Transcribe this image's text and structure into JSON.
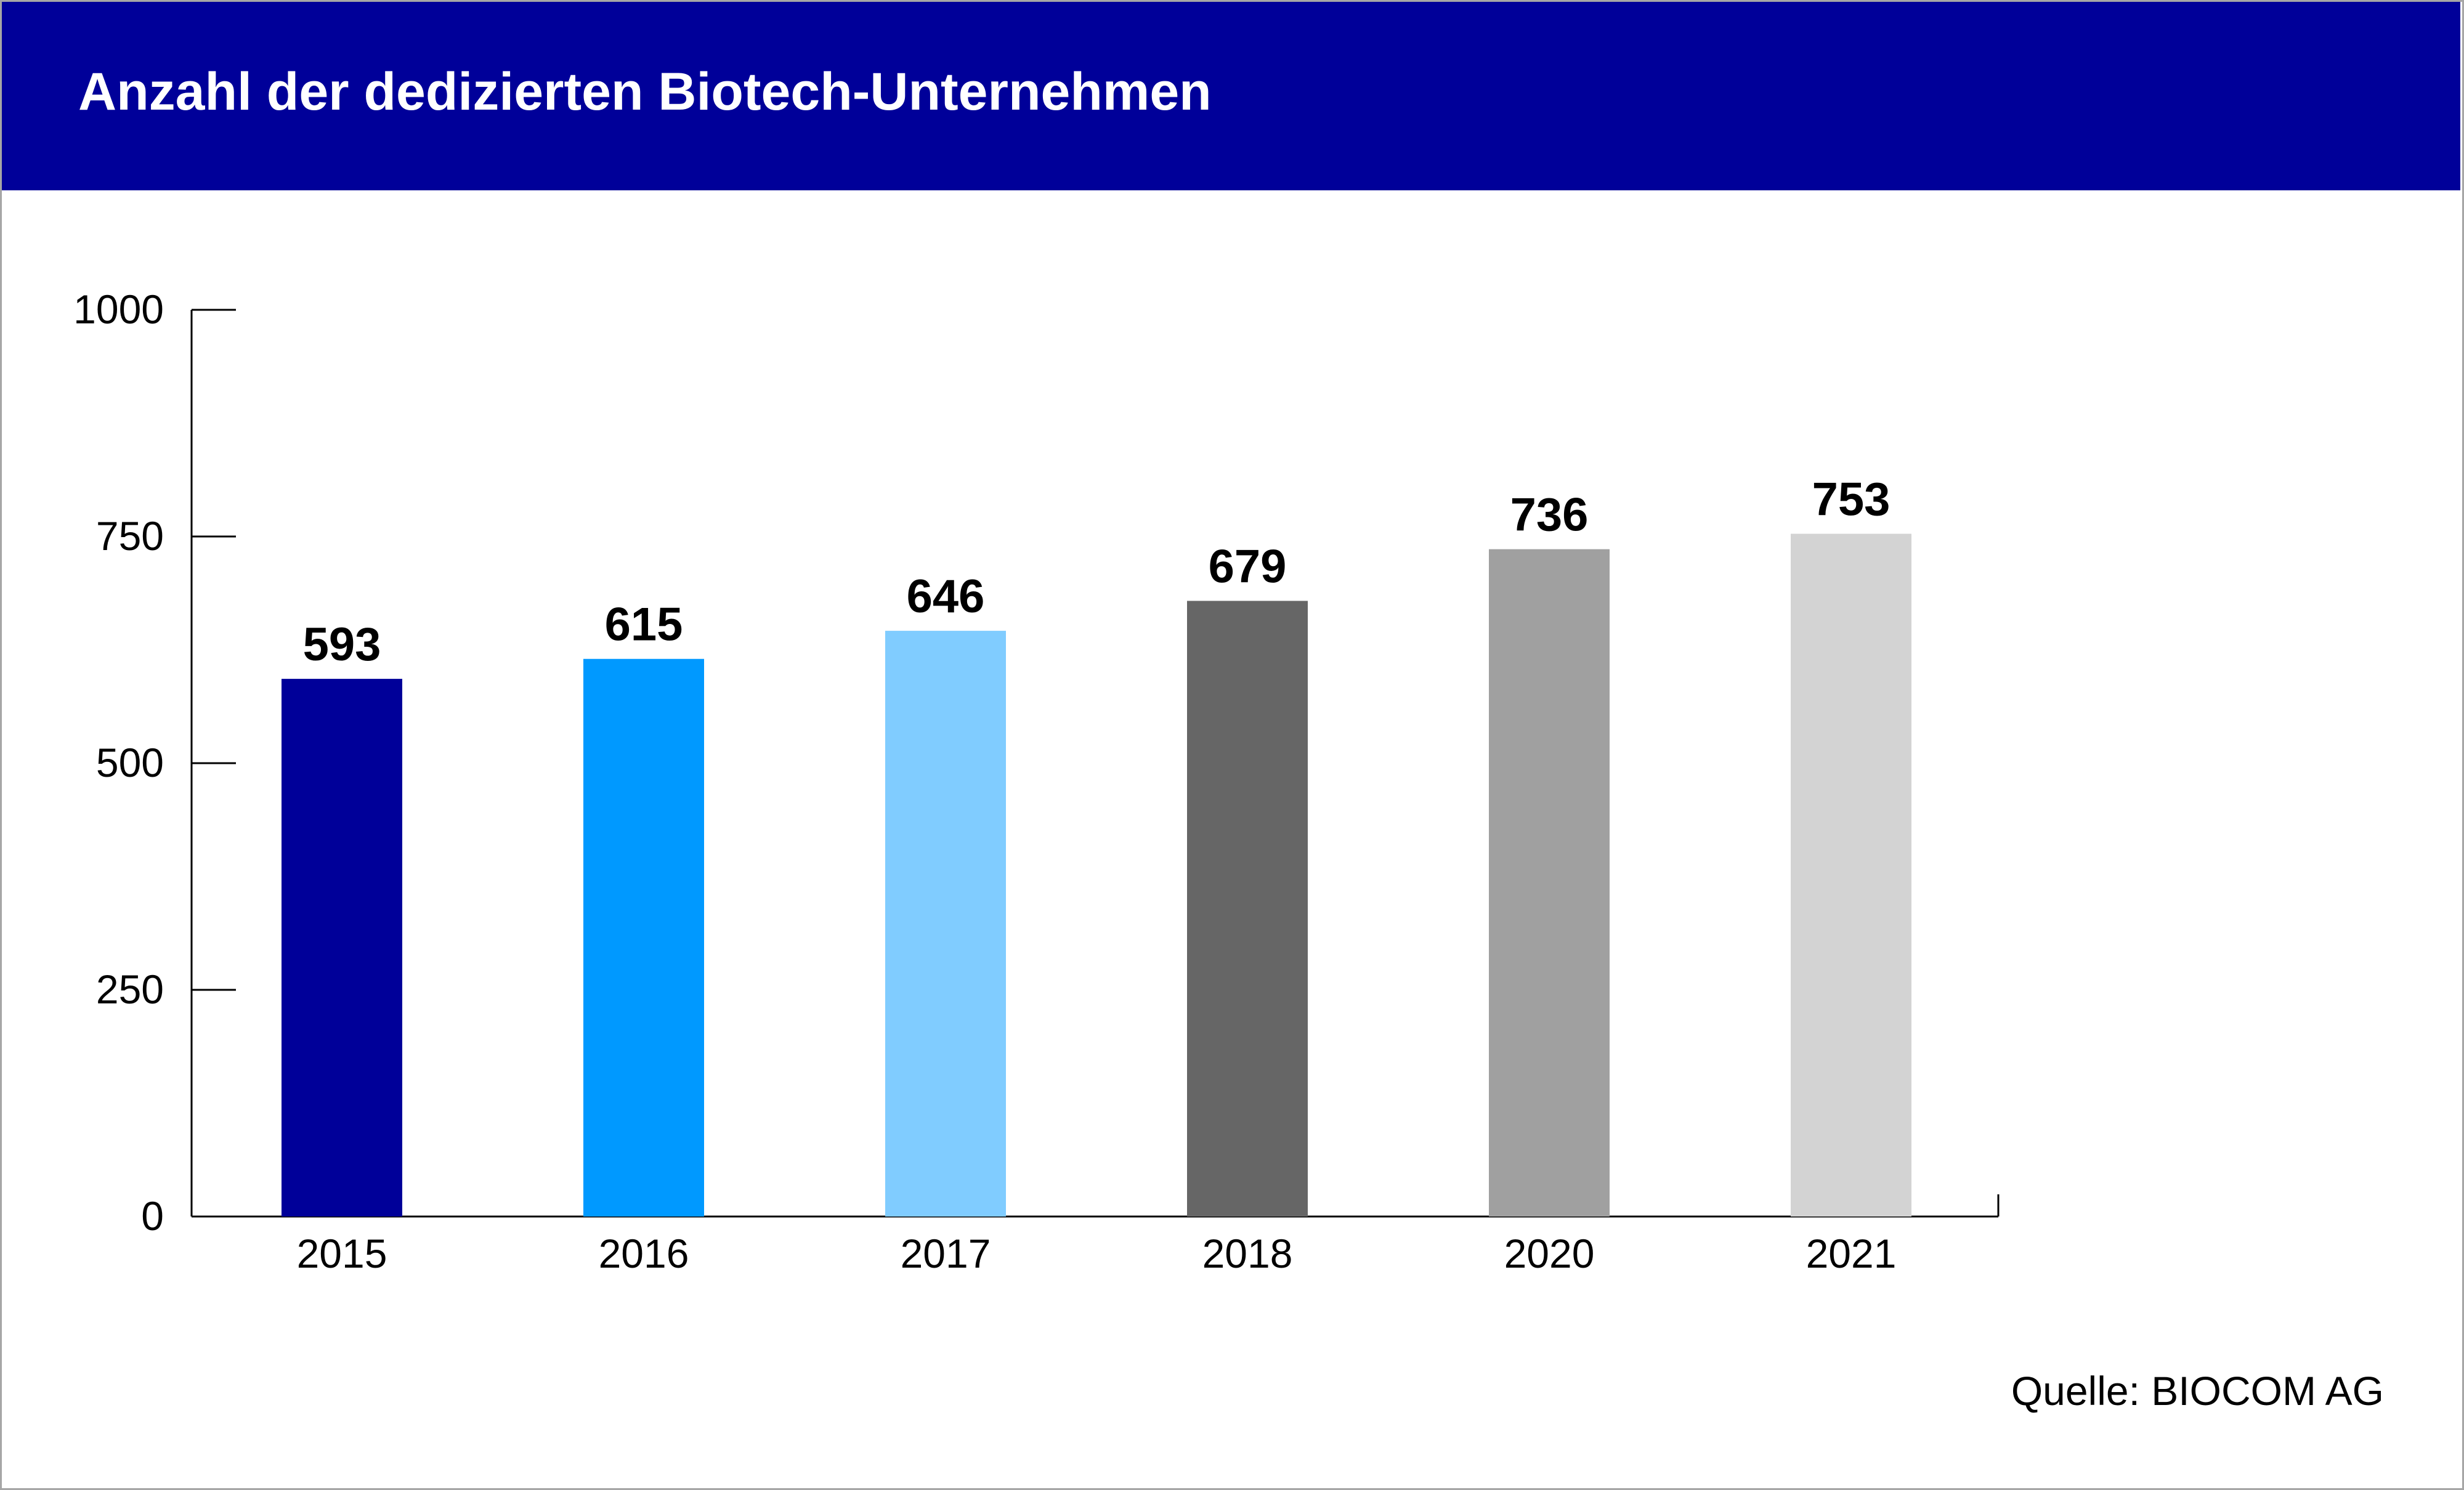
{
  "header": {
    "title": "Anzahl der dedizierten Biotech-Unternehmen",
    "background_color": "#000099"
  },
  "chart_data": {
    "type": "bar",
    "title": "Anzahl der dedizierten Biotech-Unternehmen",
    "categories": [
      "2015",
      "2016",
      "2017",
      "2018",
      "2020",
      "2021"
    ],
    "values": [
      593,
      615,
      646,
      679,
      736,
      753
    ],
    "value_labels": [
      "593",
      "615",
      "646",
      "679",
      "736",
      "753"
    ],
    "bar_colors": [
      "#000099",
      "#0099ff",
      "#80ccff",
      "#666666",
      "#a0a0a0",
      "#d3d3d3"
    ],
    "ylim": [
      0,
      1000
    ],
    "yticks": [
      0,
      250,
      500,
      750,
      1000
    ],
    "ytick_labels": [
      "0",
      "250",
      "500",
      "750",
      "1000"
    ],
    "xlabel": "",
    "ylabel": "",
    "grid": false,
    "legend": false
  },
  "source": "Quelle: BIOCOM AG"
}
